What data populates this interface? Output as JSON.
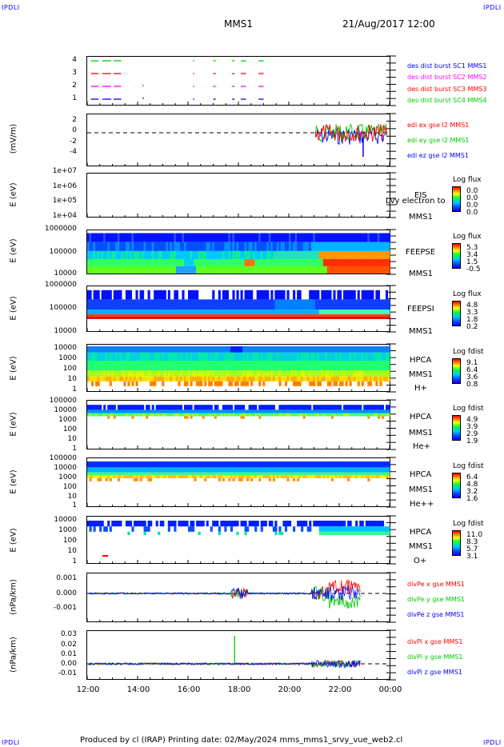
{
  "corners": {
    "tl": "IPDLI",
    "tr": "IPDLI",
    "bl": "IPDLI",
    "br": "IPDLI"
  },
  "header": {
    "title": "MMS1",
    "date": "21/Aug/2017 12:00"
  },
  "footer": "Produced by cl (IRAP)   Printing date: 02/May/2024   mms_mms1_srvy_vue_web2.cl",
  "x_ticks": [
    "12:00",
    "14:00",
    "16:00",
    "18:00",
    "20:00",
    "22:00",
    "00:00"
  ],
  "colors": {
    "red": "#ff0000",
    "green": "#00cc00",
    "blue": "#0000ff",
    "magenta": "#ff00ff"
  },
  "panels": {
    "p1": {
      "yticks": [
        "4",
        "3",
        "2",
        "1"
      ],
      "legend": [
        "des dist burst SC1 MMS1",
        "des dist burst SC2 MMS2",
        "des dist burst SC3 MMS3",
        "des dist burst SC4 MMS4"
      ]
    },
    "p2": {
      "ylabel": "(mV/m)",
      "yticks": [
        "2",
        "0",
        "-2",
        "-4"
      ],
      "legend": [
        "edi ex gse l2 MMS1",
        "edi ey gse l2 MMS1",
        "edi ez gse l2 MMS1"
      ]
    },
    "p3": {
      "ylabel": "E (eV)",
      "yticks": [
        "1e+07",
        "1e+06",
        "1e+05",
        "1e+04"
      ],
      "inst": [
        "EIS",
        "MMS1"
      ],
      "overlay": "Lvy electron to",
      "cb_title": "Log flux",
      "cb_ticks": [
        "0.0",
        "0.0",
        "0.0",
        "0.0"
      ]
    },
    "p4": {
      "ylabel": "E (eV)",
      "yticks": [
        "1000000",
        "100000",
        "10000"
      ],
      "inst": [
        "FEEPSE",
        "MMS1"
      ],
      "cb_title": "Log flux",
      "cb_ticks": [
        "5.3",
        "3.4",
        "1.5",
        "-0.5"
      ]
    },
    "p5": {
      "ylabel": "E (eV)",
      "yticks": [
        "1000000",
        "100000",
        "10000"
      ],
      "inst": [
        "FEEPSI",
        "MMS1"
      ],
      "cb_title": "Log flux",
      "cb_ticks": [
        "4.8",
        "3.3",
        "1.8",
        "0.2"
      ]
    },
    "p6": {
      "ylabel": "E (eV)",
      "yticks": [
        "10000",
        "1000",
        "100",
        "10",
        "1"
      ],
      "inst": [
        "HPCA",
        "MMS1",
        "H+"
      ],
      "cb_title": "Log fdist",
      "cb_ticks": [
        "9.1",
        "6.4",
        "3.6",
        "0.8"
      ]
    },
    "p7": {
      "ylabel": "E (eV)",
      "yticks": [
        "100000",
        "10000",
        "1000",
        "100",
        "10",
        "1"
      ],
      "inst": [
        "HPCA",
        "MMS1",
        "He+"
      ],
      "cb_title": "Log fdist",
      "cb_ticks": [
        "4.9",
        "3.9",
        "2.9",
        "1.9"
      ]
    },
    "p8": {
      "ylabel": "E (eV)",
      "yticks": [
        "100000",
        "10000",
        "1000",
        "100",
        "10",
        "1"
      ],
      "inst": [
        "HPCA",
        "MMS1",
        "He++"
      ],
      "cb_title": "Log fdist",
      "cb_ticks": [
        "6.4",
        "4.8",
        "3.2",
        "1.6"
      ]
    },
    "p9": {
      "ylabel": "E (eV)",
      "yticks": [
        "10000",
        "1000",
        "100",
        "10",
        "1"
      ],
      "inst": [
        "HPCA",
        "MMS1",
        "O+"
      ],
      "cb_title": "Log fdist",
      "cb_ticks": [
        "11.0",
        "8.3",
        "5.7",
        "3.1"
      ]
    },
    "p10": {
      "ylabel": "(nPa/km)",
      "yticks": [
        "0.001",
        "0.000",
        "-0.001"
      ],
      "legend": [
        "divPe x gse MMS1",
        "divPe y gse MMS1",
        "divPe z gse MMS1"
      ]
    },
    "p11": {
      "ylabel": "(nPa/km)",
      "yticks": [
        "0.03",
        "0.02",
        "0.01",
        "0.00",
        "-0.01"
      ],
      "legend": [
        "divPi x gse MMS1",
        "divPi y gse MMS1",
        "divPi z gse MMS1"
      ]
    }
  },
  "chart_data": {
    "type": "line",
    "title": "MMS1",
    "xlabel": "",
    "x_range": [
      "12:00",
      "00:00"
    ],
    "burst_intervals": {
      "categories": [
        "SC1",
        "SC2",
        "SC3",
        "SC4"
      ],
      "note_times": [
        "12:15-12:30",
        "12:35-12:50",
        "12:55-13:10",
        "16:15",
        "17:00",
        "17:50",
        "18:10-18:20",
        "19:05"
      ]
    },
    "edi_efield": {
      "series": [
        {
          "name": "edi ex gse l2 MMS1"
        },
        {
          "name": "edi ey gse l2 MMS1"
        },
        {
          "name": "edi ez gse l2 MMS1"
        }
      ],
      "ylim": [
        -5,
        3
      ],
      "active_from": "21:05"
    },
    "divPe": {
      "ylim": [
        -0.0017,
        0.0015
      ],
      "series": [
        {
          "name": "divPe x gse MMS1"
        },
        {
          "name": "divPe y gse MMS1"
        },
        {
          "name": "divPe z gse MMS1"
        }
      ]
    },
    "divPi": {
      "ylim": [
        -0.015,
        0.035
      ],
      "spike": {
        "time": "17:50",
        "value": 0.03
      },
      "series": [
        {
          "name": "divPi x gse MMS1"
        },
        {
          "name": "divPi y gse MMS1"
        },
        {
          "name": "divPi z gse MMS1"
        }
      ]
    }
  }
}
